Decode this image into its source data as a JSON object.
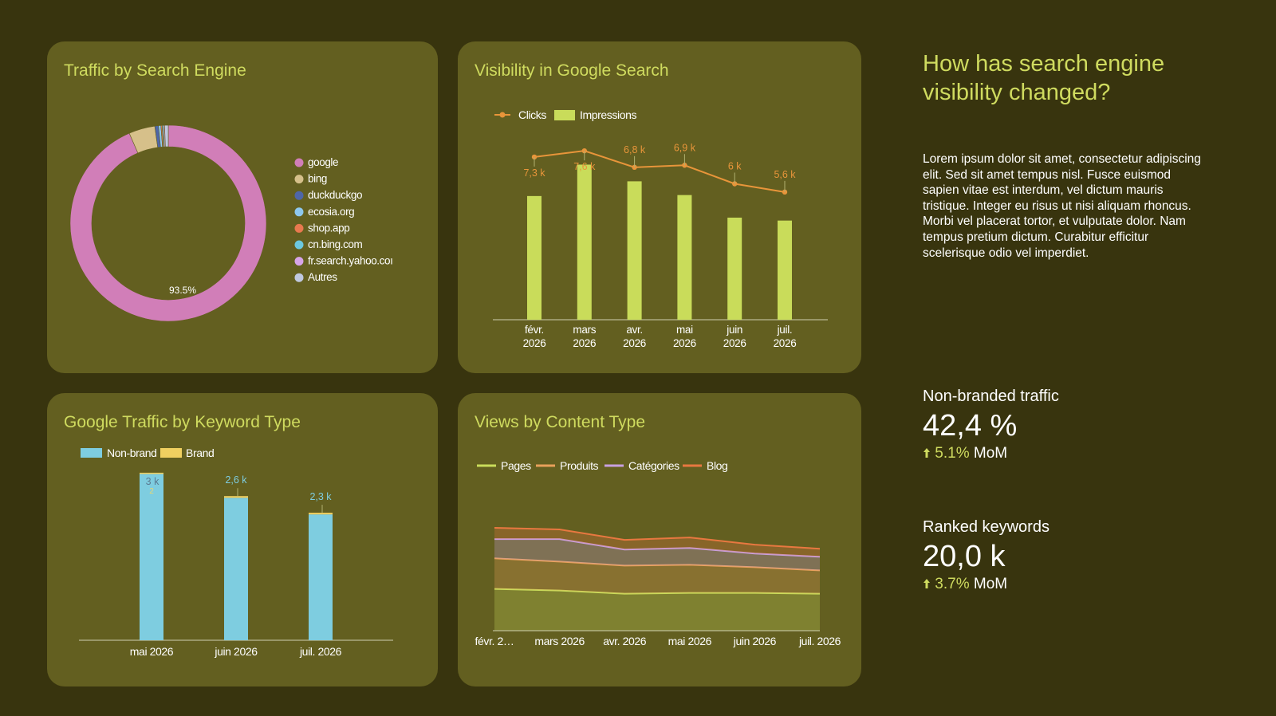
{
  "colors": {
    "background": "#38340e",
    "card": "#635f20",
    "accent": "#cfdb5f",
    "text": "#ffffff"
  },
  "side": {
    "headline": "How has search engine visibility changed?",
    "body": "Lorem ipsum dolor sit amet, consectetur adipiscing elit. Sed sit amet tempus nisl. Fusce euismod sapien vitae est interdum, vel dictum mauris tristique. Integer eu risus ut nisi aliquam rhoncus. Morbi vel placerat tortor, et vulputate dolor. Nam tempus pretium dictum. Curabitur efficitur scelerisque odio vel imperdiet.",
    "kpis": [
      {
        "label": "Non-branded traffic",
        "value": "42,4 %",
        "change": "5.1%",
        "period": "MoM",
        "trend_icon": "arrow-up-icon"
      },
      {
        "label": "Ranked keywords",
        "value": "20,0 k",
        "change": "3.7%",
        "period": "MoM",
        "trend_icon": "arrow-up-icon"
      }
    ]
  },
  "chart_data": [
    {
      "type": "pie",
      "title": "Traffic by Search Engine",
      "donut": true,
      "categories": [
        "google",
        "bing",
        "duckduckgo",
        "ecosia.org",
        "shop.app",
        "cn.bing.com",
        "fr.search.yahoo.com",
        "Autres"
      ],
      "legend_labels": [
        "google",
        "bing",
        "duckduckgo",
        "ecosia.org",
        "shop.app",
        "cn.bing.com",
        "fr.search.yahoo.coı",
        "Autres"
      ],
      "values": [
        93.5,
        4.3,
        0.6,
        0.4,
        0.2,
        0.2,
        0.2,
        0.6
      ],
      "colors": [
        "#d17eb8",
        "#d6c08a",
        "#4e66a8",
        "#8ec8ee",
        "#e8794f",
        "#6cc8df",
        "#d7a4e8",
        "#c0c8df"
      ],
      "data_labels": {
        "google": "93.5%"
      },
      "legend": "right"
    },
    {
      "type": "bar",
      "title": "Visibility in Google Search",
      "categories": [
        [
          "févr.",
          "2026"
        ],
        [
          "mars",
          "2026"
        ],
        [
          "avr.",
          "2026"
        ],
        [
          "mai",
          "2026"
        ],
        [
          "juin",
          "2026"
        ],
        [
          "juil.",
          "2026"
        ]
      ],
      "series": [
        {
          "name": "Clicks",
          "type": "line",
          "color": "#e8953a",
          "values": [
            7.3,
            7.6,
            6.8,
            6.9,
            6.0,
            5.6
          ],
          "labels": [
            "7,3 k",
            "7,6 k",
            "6,8 k",
            "6,9 k",
            "6 k",
            "5,6 k"
          ]
        },
        {
          "name": "Impressions",
          "type": "bar",
          "color": "#c9dc5a",
          "values": [
            126,
            158,
            141,
            127,
            104,
            101
          ]
        }
      ],
      "legend": "top-left"
    },
    {
      "type": "bar",
      "stacked": true,
      "title": "Google Traffic by Keyword Type",
      "categories": [
        "mai 2026",
        "juin 2026",
        "juil. 2026"
      ],
      "series": [
        {
          "name": "Non-brand",
          "color": "#7ecde0",
          "values": [
            3.0,
            2.57,
            2.27
          ],
          "labels": [
            "3 k",
            "2,6 k",
            "2,3 k"
          ]
        },
        {
          "name": "Brand",
          "color": "#f0d060",
          "values": [
            0.002,
            0.03,
            0.03
          ],
          "labels": [
            "2",
            "",
            ""
          ]
        }
      ],
      "legend": "top-left"
    },
    {
      "type": "area",
      "stacked": true,
      "title": "Views by Content Type",
      "categories": [
        "févr. 2…",
        "mars 2026",
        "avr. 2026",
        "mai 2026",
        "juin 2026",
        "juil. 2026"
      ],
      "series": [
        {
          "name": "Pages",
          "color": "#c9dc5a",
          "values": [
            52,
            50,
            46,
            47,
            47,
            46
          ]
        },
        {
          "name": "Produits",
          "color": "#e8a05a",
          "values": [
            38,
            36,
            35,
            35,
            32,
            29
          ]
        },
        {
          "name": "Catégories",
          "color": "#c8a0e0",
          "values": [
            24,
            28,
            20,
            21,
            17,
            17
          ]
        },
        {
          "name": "Blog",
          "color": "#e87840",
          "values": [
            14,
            12,
            12,
            13,
            11,
            10
          ]
        }
      ],
      "legend": "top-left"
    }
  ]
}
